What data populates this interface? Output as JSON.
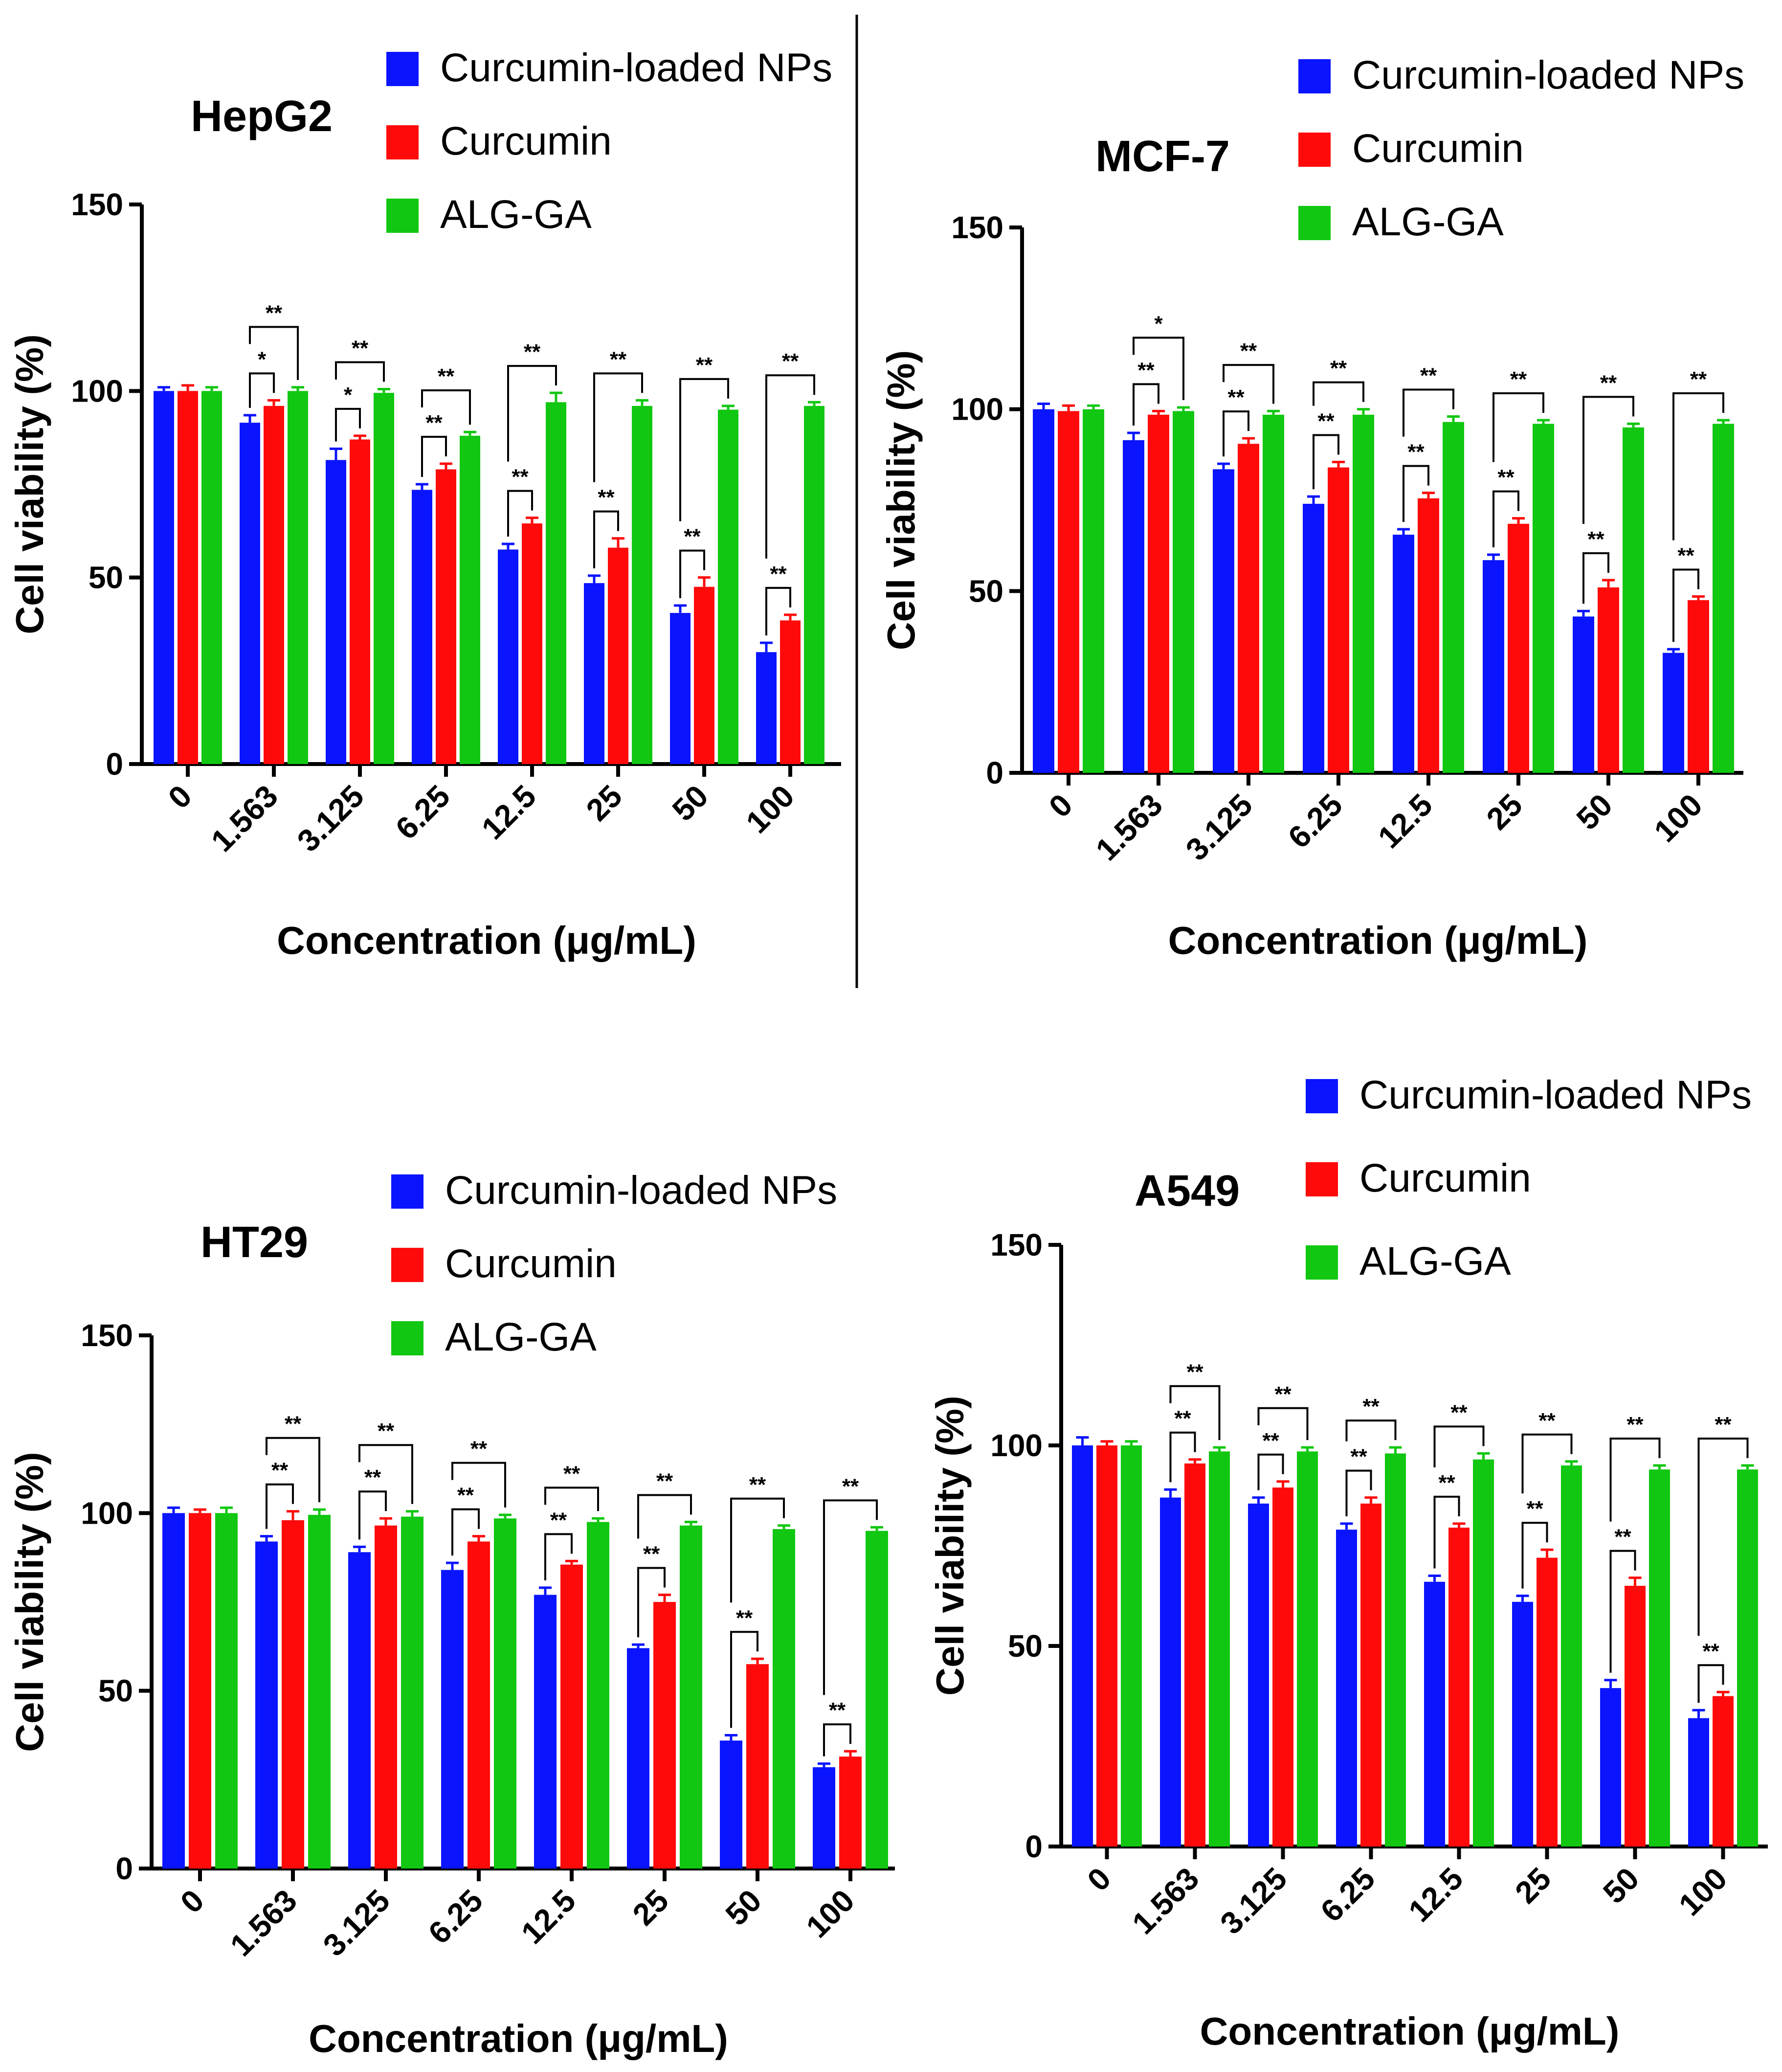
{
  "figure": {
    "colors": {
      "nps": "#0a14ff",
      "cur": "#ff0a0a",
      "alg": "#11c711",
      "axis": "#000000",
      "divider": "#000000"
    }
  },
  "chart_data": [
    {
      "type": "bar",
      "title": "HepG2",
      "xlabel": "Concentration (μg/mL)",
      "ylabel": "Cell viability (%)",
      "ylim": [
        0,
        150
      ],
      "yticks": [
        "0",
        "50",
        "100",
        "150"
      ],
      "categories": [
        "0",
        "1.563",
        "3.125",
        "6.25",
        "12.5",
        "25",
        "50",
        "100"
      ],
      "series": [
        {
          "name": "Curcumin-loaded NPs",
          "values": [
            100,
            91.5,
            81.5,
            73.5,
            57.5,
            48.5,
            40.5,
            30
          ],
          "errors": [
            1,
            2,
            3,
            1.5,
            1.5,
            2,
            2,
            2.5
          ]
        },
        {
          "name": "Curcumin",
          "values": [
            100,
            96,
            87,
            79,
            64.5,
            58,
            47.5,
            38.5
          ],
          "errors": [
            1.5,
            1.5,
            1,
            1.5,
            1.5,
            2.5,
            2.5,
            1.5
          ]
        },
        {
          "name": "ALG-GA",
          "values": [
            100,
            100,
            99.5,
            88,
            97,
            96,
            95,
            96
          ],
          "errors": [
            1,
            1,
            1,
            1,
            2.5,
            1.5,
            1,
            1
          ]
        }
      ],
      "significance": [
        {
          "group": 1,
          "outer": "**",
          "inner": "*"
        },
        {
          "group": 2,
          "outer": "**",
          "inner": "*"
        },
        {
          "group": 3,
          "outer": "**",
          "inner": "**"
        },
        {
          "group": 4,
          "outer": "**",
          "inner": "**"
        },
        {
          "group": 5,
          "outer": "**",
          "inner": "**"
        },
        {
          "group": 6,
          "outer": "**",
          "inner": "**"
        },
        {
          "group": 7,
          "outer": "**",
          "inner": "**"
        }
      ]
    },
    {
      "type": "bar",
      "title": "MCF-7",
      "xlabel": "Concentration (μg/mL)",
      "ylabel": "Cell viability (%)",
      "ylim": [
        0,
        150
      ],
      "yticks": [
        "0",
        "50",
        "100",
        "150"
      ],
      "categories": [
        "0",
        "1.563",
        "3.125",
        "6.25",
        "12.5",
        "25",
        "50",
        "100"
      ],
      "series": [
        {
          "name": "Curcumin-loaded NPs",
          "values": [
            100,
            91.5,
            83.5,
            74,
            65.5,
            58.5,
            43,
            33
          ],
          "errors": [
            1.5,
            2,
            1.5,
            2,
            1.5,
            1.5,
            1.5,
            1
          ]
        },
        {
          "name": "Curcumin",
          "values": [
            99.5,
            98.5,
            90.5,
            84,
            75.5,
            68.5,
            51,
            47.5
          ],
          "errors": [
            1.5,
            1,
            1.5,
            1.5,
            1.5,
            1.5,
            2,
            1
          ]
        },
        {
          "name": "ALG-GA",
          "values": [
            100,
            99.5,
            98.5,
            98.5,
            96.5,
            96,
            95,
            96
          ],
          "errors": [
            1,
            1,
            1,
            1.5,
            1.5,
            1,
            1,
            1
          ]
        }
      ],
      "significance": [
        {
          "group": 1,
          "outer": "*",
          "inner": "**"
        },
        {
          "group": 2,
          "outer": "**",
          "inner": "**"
        },
        {
          "group": 3,
          "outer": "**",
          "inner": "**"
        },
        {
          "group": 4,
          "outer": "**",
          "inner": "**"
        },
        {
          "group": 5,
          "outer": "**",
          "inner": "**"
        },
        {
          "group": 6,
          "outer": "**",
          "inner": "**"
        },
        {
          "group": 7,
          "outer": "**",
          "inner": "**"
        }
      ]
    },
    {
      "type": "bar",
      "title": "HT29",
      "xlabel": "Concentration (μg/mL)",
      "ylabel": "Cell viability (%)",
      "ylim": [
        0,
        150
      ],
      "yticks": [
        "0",
        "50",
        "100",
        "150"
      ],
      "categories": [
        "0",
        "1.563",
        "3.125",
        "6.25",
        "12.5",
        "25",
        "50",
        "100"
      ],
      "series": [
        {
          "name": "Curcumin-loaded NPs",
          "values": [
            100,
            92,
            89,
            84,
            77,
            62,
            36,
            28.5
          ],
          "errors": [
            1.5,
            1.5,
            1.5,
            2,
            2,
            1,
            1.5,
            1
          ]
        },
        {
          "name": "Curcumin",
          "values": [
            100,
            98,
            96.5,
            92,
            85.5,
            75,
            57.5,
            31.5
          ],
          "errors": [
            1,
            2.5,
            2,
            1.5,
            1,
            2,
            1.5,
            1.5
          ]
        },
        {
          "name": "ALG-GA",
          "values": [
            100,
            99.5,
            99,
            98.5,
            97.5,
            96.5,
            95.5,
            95
          ],
          "errors": [
            1.5,
            1.5,
            1.5,
            1,
            1,
            1,
            1,
            1
          ]
        }
      ],
      "significance": [
        {
          "group": 1,
          "outer": "**",
          "inner": "**"
        },
        {
          "group": 2,
          "outer": "**",
          "inner": "**"
        },
        {
          "group": 3,
          "outer": "**",
          "inner": "**"
        },
        {
          "group": 4,
          "outer": "**",
          "inner": "**"
        },
        {
          "group": 5,
          "outer": "**",
          "inner": "**"
        },
        {
          "group": 6,
          "outer": "**",
          "inner": "**"
        },
        {
          "group": 7,
          "outer": "**",
          "inner": "**"
        }
      ]
    },
    {
      "type": "bar",
      "title": "A549",
      "xlabel": "Concentration (μg/mL)",
      "ylabel": "Cell viability (%)",
      "ylim": [
        0,
        150
      ],
      "yticks": [
        "0",
        "50",
        "100",
        "150"
      ],
      "categories": [
        "0",
        "1.563",
        "3.125",
        "6.25",
        "12.5",
        "25",
        "50",
        "100"
      ],
      "series": [
        {
          "name": "Curcumin-loaded NPs",
          "values": [
            100,
            87,
            85.5,
            79,
            66,
            61,
            39.5,
            32
          ],
          "errors": [
            2,
            2,
            1.5,
            1.5,
            1.5,
            1.5,
            2,
            2
          ]
        },
        {
          "name": "Curcumin",
          "values": [
            100,
            95.5,
            89.5,
            85.5,
            79.5,
            72,
            65,
            37.5
          ],
          "errors": [
            1,
            1,
            1.5,
            1.5,
            1,
            2,
            2,
            1
          ]
        },
        {
          "name": "ALG-GA",
          "values": [
            100,
            98.5,
            98.5,
            98,
            96.5,
            95,
            94,
            94
          ],
          "errors": [
            1,
            1,
            1,
            1.5,
            1.5,
            1,
            1,
            1
          ]
        }
      ],
      "significance": [
        {
          "group": 1,
          "outer": "**",
          "inner": "**"
        },
        {
          "group": 2,
          "outer": "**",
          "inner": "**"
        },
        {
          "group": 3,
          "outer": "**",
          "inner": "**"
        },
        {
          "group": 4,
          "outer": "**",
          "inner": "**"
        },
        {
          "group": 5,
          "outer": "**",
          "inner": "**"
        },
        {
          "group": 6,
          "outer": "**",
          "inner": "**"
        },
        {
          "group": 7,
          "outer": "**",
          "inner": "**"
        }
      ]
    }
  ]
}
